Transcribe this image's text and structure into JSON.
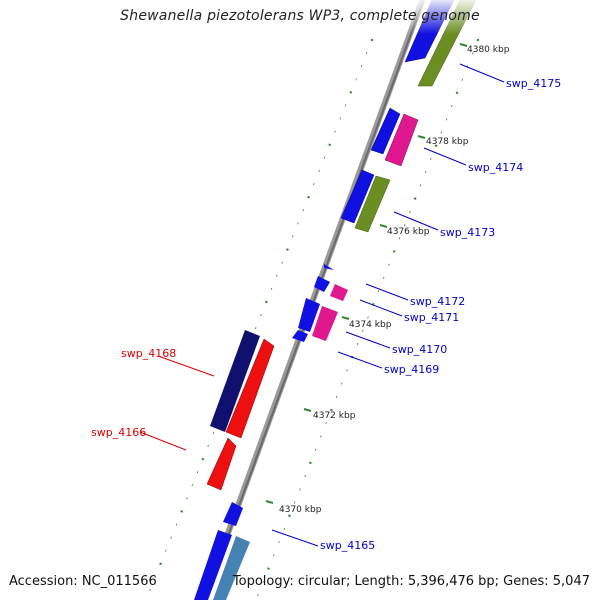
{
  "title": "Shewanella piezotolerans WP3, complete genome",
  "footer": {
    "accession": "Accession: NC_011566",
    "summary": "Topology: circular; Length: 5,396,476 bp; Genes: 5,047"
  },
  "colors": {
    "blue": "#1010e0",
    "navy": "#10106e",
    "red": "#ee1010",
    "pink": "#e01890",
    "olive": "#6b8e23",
    "steel": "#4682b4",
    "tick": "#2e8b2e",
    "label_blue": "#0000cc",
    "label_red": "#dd0000"
  },
  "ticks": [
    {
      "label": "4380 kbp"
    },
    {
      "label": "4378 kbp"
    },
    {
      "label": "4376 kbp"
    },
    {
      "label": "4374 kbp"
    },
    {
      "label": "4372 kbp"
    },
    {
      "label": "4370 kbp"
    }
  ],
  "genes": [
    {
      "label": "swp_4175",
      "color": "olive",
      "strand": "+"
    },
    {
      "label": "swp_4174",
      "color": "pink",
      "strand": "+"
    },
    {
      "label": "swp_4173",
      "color": "olive",
      "strand": "+"
    },
    {
      "label": "swp_4172",
      "color": "pink",
      "strand": "+"
    },
    {
      "label": "swp_4171",
      "color": "blue",
      "strand": "+"
    },
    {
      "label": "swp_4170",
      "color": "pink",
      "strand": "+"
    },
    {
      "label": "swp_4169",
      "color": "blue",
      "strand": "+"
    },
    {
      "label": "swp_4168",
      "color": "red",
      "strand": "-"
    },
    {
      "label": "swp_4166",
      "color": "red",
      "strand": "-"
    },
    {
      "label": "swp_4165",
      "color": "steel",
      "strand": "+"
    }
  ]
}
